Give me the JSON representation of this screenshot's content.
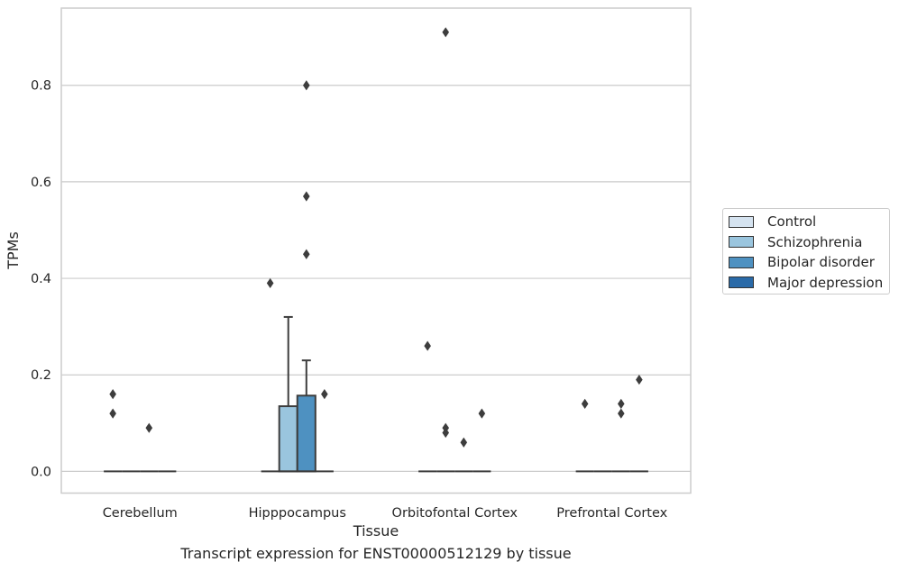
{
  "chart_data": {
    "type": "box",
    "xlabel": "Tissue",
    "ylabel": "TPMs",
    "caption": "Transcript expression for ENST00000512129 by tissue",
    "categories": [
      "Cerebellum",
      "Hipppocampus",
      "Orbitofontal Cortex",
      "Prefrontal Cortex"
    ],
    "ylim": [
      -0.045,
      0.96
    ],
    "yticks": [
      "0.0",
      "0.2",
      "0.4",
      "0.6",
      "0.8"
    ],
    "grid": "horizontal",
    "legend_position": "right",
    "series": [
      {
        "name": "Control",
        "color": "#d5e3f0",
        "boxes": [
          {
            "q1": 0,
            "median": 0,
            "q3": 0,
            "whisker_low": 0,
            "whisker_high": 0,
            "outliers": [
              0.12,
              0.16
            ]
          },
          {
            "q1": 0,
            "median": 0,
            "q3": 0,
            "whisker_low": 0,
            "whisker_high": 0,
            "outliers": []
          },
          {
            "q1": 0,
            "median": 0,
            "q3": 0,
            "whisker_low": 0,
            "whisker_high": 0,
            "outliers": [
              0.26
            ]
          },
          {
            "q1": 0,
            "median": 0,
            "q3": 0,
            "whisker_low": 0,
            "whisker_high": 0,
            "outliers": [
              0.14
            ]
          }
        ]
      },
      {
        "name": "Schizophrenia",
        "color": "#9ac5de",
        "boxes": [
          {
            "q1": 0,
            "median": 0,
            "q3": 0,
            "whisker_low": 0,
            "whisker_high": 0,
            "outliers": []
          },
          {
            "q1": 0,
            "median": 0,
            "q3": 0.135,
            "whisker_low": 0,
            "whisker_high": 0.32,
            "outliers": []
          },
          {
            "q1": 0,
            "median": 0,
            "q3": 0,
            "whisker_low": 0,
            "whisker_high": 0,
            "outliers": []
          },
          {
            "q1": 0,
            "median": 0,
            "q3": 0,
            "whisker_low": 0,
            "whisker_high": 0,
            "outliers": []
          }
        ]
      },
      {
        "name": "Bipolar disorder",
        "color": "#4e91c1",
        "boxes": [
          {
            "q1": 0,
            "median": 0,
            "q3": 0,
            "whisker_low": 0,
            "whisker_high": 0,
            "outliers": [
              0.09
            ]
          },
          {
            "q1": 0,
            "median": 0,
            "q3": 0.157,
            "whisker_low": 0,
            "whisker_high": 0.23,
            "outliers": []
          },
          {
            "q1": 0,
            "median": 0,
            "q3": 0,
            "whisker_low": 0,
            "whisker_high": 0,
            "outliers": [
              0.06
            ]
          },
          {
            "q1": 0,
            "median": 0,
            "q3": 0,
            "whisker_low": 0,
            "whisker_high": 0,
            "outliers": []
          }
        ]
      },
      {
        "name": "Major depression",
        "color": "#2a6aa8",
        "boxes": [
          {
            "q1": 0,
            "median": 0,
            "q3": 0,
            "whisker_low": 0,
            "whisker_high": 0,
            "outliers": []
          },
          {
            "q1": 0,
            "median": 0,
            "q3": 0,
            "whisker_low": 0,
            "whisker_high": 0,
            "outliers": [
              0.16
            ]
          },
          {
            "q1": 0,
            "median": 0,
            "q3": 0,
            "whisker_low": 0,
            "whisker_high": 0,
            "outliers": [
              0.12
            ]
          },
          {
            "q1": 0,
            "median": 0,
            "q3": 0,
            "whisker_low": 0,
            "whisker_high": 0,
            "outliers": []
          }
        ]
      }
    ],
    "extra_outliers": [
      {
        "category": 1,
        "series": 0,
        "value": 0.39
      },
      {
        "category": 1,
        "series": 2,
        "value": 0.45
      },
      {
        "category": 1,
        "series": 2,
        "value": 0.57
      },
      {
        "category": 1,
        "series": 2,
        "value": 0.8
      },
      {
        "category": 2,
        "series": 1,
        "value": 0.91
      },
      {
        "category": 2,
        "series": 1,
        "value": 0.08
      },
      {
        "category": 2,
        "series": 1,
        "value": 0.09
      },
      {
        "category": 3,
        "series": 2,
        "value": 0.12
      },
      {
        "category": 3,
        "series": 2,
        "value": 0.14
      },
      {
        "category": 3,
        "series": 3,
        "value": 0.19
      }
    ]
  }
}
